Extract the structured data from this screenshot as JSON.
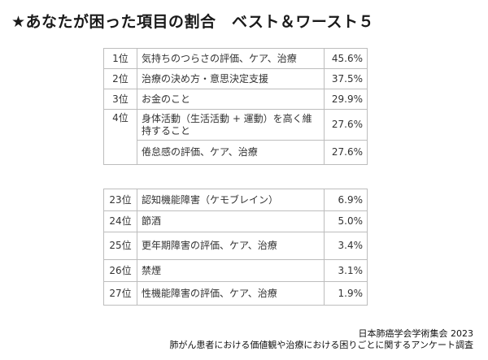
{
  "title": "★あなたが困った項目の割合　ベスト＆ワースト５",
  "best": [
    {
      "rank": "1位",
      "item": "気持ちのつらさの評価、ケア、治療",
      "percent": "45.6%"
    },
    {
      "rank": "2位",
      "item": "治療の決め方・意思決定支援",
      "percent": "37.5%"
    },
    {
      "rank": "3位",
      "item": "お金のこと",
      "percent": "29.9%"
    },
    {
      "rank": "4位",
      "item": "身体活動（生活活動 + 運動）を高く維持すること",
      "percent": "27.6%"
    },
    {
      "rank": "",
      "item": "倦怠感の評価、ケア、治療",
      "percent": "27.6%"
    }
  ],
  "worst": [
    {
      "rank": "23位",
      "item": "認知機能障害（ケモブレイン）",
      "percent": "6.9%"
    },
    {
      "rank": "24位",
      "item": "節酒",
      "percent": "5.0%"
    },
    {
      "rank": "25位",
      "item": "更年期障害の評価、ケア、治療",
      "percent": "3.4%"
    },
    {
      "rank": "26位",
      "item": "禁煙",
      "percent": "3.1%"
    },
    {
      "rank": "27位",
      "item": "性機能障害の評価、ケア、治療",
      "percent": "1.9%"
    }
  ],
  "footer": {
    "line1": "日本肺癌学会学術集会 2023",
    "line2": "肺がん患者における価値観や治療における困りごとに関するアンケート調査"
  }
}
